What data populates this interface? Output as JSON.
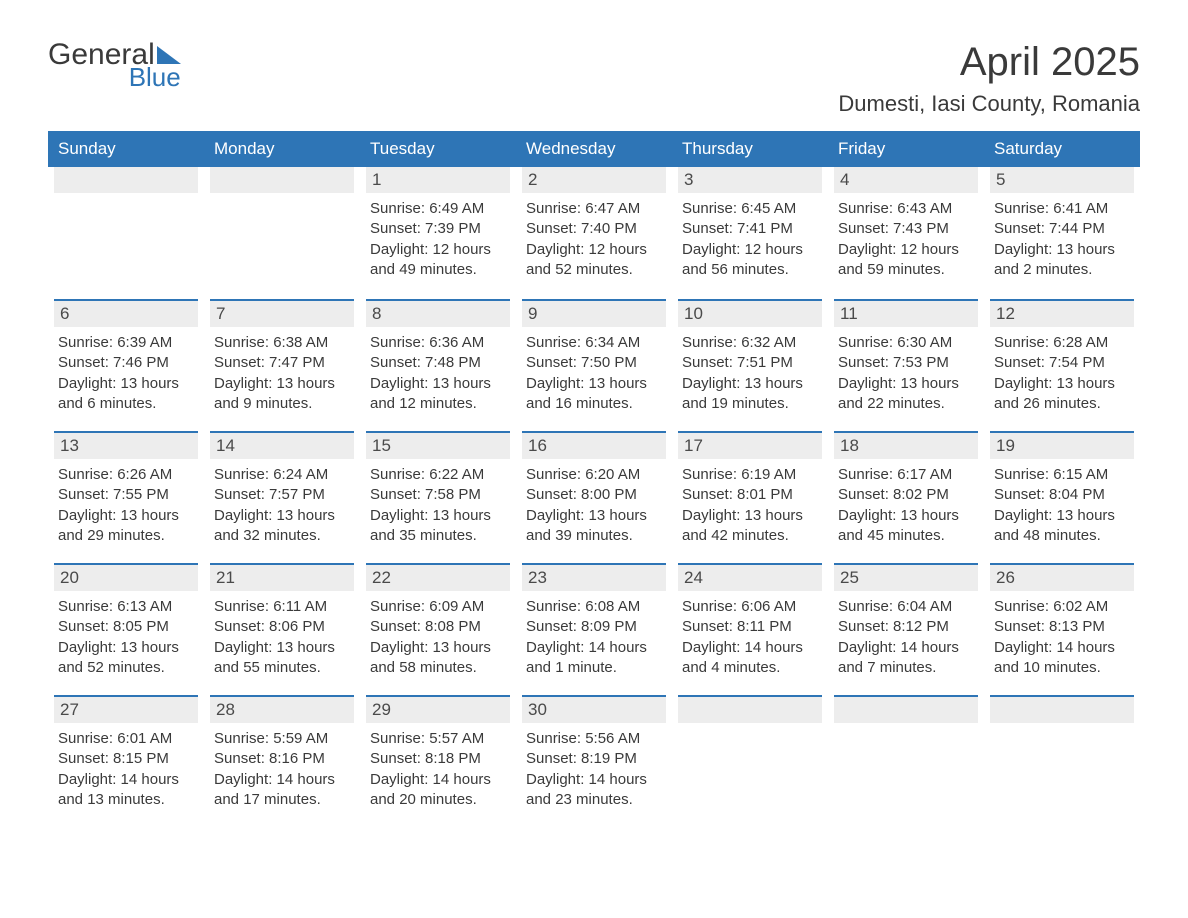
{
  "colors": {
    "accent": "#2e75b6",
    "header_bg": "#2e75b6",
    "header_text": "#ffffff",
    "daynum_bg": "#ededed",
    "text": "#3a3a3a",
    "background": "#ffffff"
  },
  "typography": {
    "title_fontsize": 40,
    "location_fontsize": 22,
    "weekday_fontsize": 17,
    "daynum_fontsize": 17,
    "body_fontsize": 15,
    "font_family": "Arial"
  },
  "logo": {
    "word1": "General",
    "word2": "Blue"
  },
  "title": "April 2025",
  "location": "Dumesti, Iasi County, Romania",
  "weekdays": [
    "Sunday",
    "Monday",
    "Tuesday",
    "Wednesday",
    "Thursday",
    "Friday",
    "Saturday"
  ],
  "weeks": [
    [
      {
        "num": "",
        "sunrise": "",
        "sunset": "",
        "daylight1": "",
        "daylight2": ""
      },
      {
        "num": "",
        "sunrise": "",
        "sunset": "",
        "daylight1": "",
        "daylight2": ""
      },
      {
        "num": "1",
        "sunrise": "Sunrise: 6:49 AM",
        "sunset": "Sunset: 7:39 PM",
        "daylight1": "Daylight: 12 hours",
        "daylight2": "and 49 minutes."
      },
      {
        "num": "2",
        "sunrise": "Sunrise: 6:47 AM",
        "sunset": "Sunset: 7:40 PM",
        "daylight1": "Daylight: 12 hours",
        "daylight2": "and 52 minutes."
      },
      {
        "num": "3",
        "sunrise": "Sunrise: 6:45 AM",
        "sunset": "Sunset: 7:41 PM",
        "daylight1": "Daylight: 12 hours",
        "daylight2": "and 56 minutes."
      },
      {
        "num": "4",
        "sunrise": "Sunrise: 6:43 AM",
        "sunset": "Sunset: 7:43 PM",
        "daylight1": "Daylight: 12 hours",
        "daylight2": "and 59 minutes."
      },
      {
        "num": "5",
        "sunrise": "Sunrise: 6:41 AM",
        "sunset": "Sunset: 7:44 PM",
        "daylight1": "Daylight: 13 hours",
        "daylight2": "and 2 minutes."
      }
    ],
    [
      {
        "num": "6",
        "sunrise": "Sunrise: 6:39 AM",
        "sunset": "Sunset: 7:46 PM",
        "daylight1": "Daylight: 13 hours",
        "daylight2": "and 6 minutes."
      },
      {
        "num": "7",
        "sunrise": "Sunrise: 6:38 AM",
        "sunset": "Sunset: 7:47 PM",
        "daylight1": "Daylight: 13 hours",
        "daylight2": "and 9 minutes."
      },
      {
        "num": "8",
        "sunrise": "Sunrise: 6:36 AM",
        "sunset": "Sunset: 7:48 PM",
        "daylight1": "Daylight: 13 hours",
        "daylight2": "and 12 minutes."
      },
      {
        "num": "9",
        "sunrise": "Sunrise: 6:34 AM",
        "sunset": "Sunset: 7:50 PM",
        "daylight1": "Daylight: 13 hours",
        "daylight2": "and 16 minutes."
      },
      {
        "num": "10",
        "sunrise": "Sunrise: 6:32 AM",
        "sunset": "Sunset: 7:51 PM",
        "daylight1": "Daylight: 13 hours",
        "daylight2": "and 19 minutes."
      },
      {
        "num": "11",
        "sunrise": "Sunrise: 6:30 AM",
        "sunset": "Sunset: 7:53 PM",
        "daylight1": "Daylight: 13 hours",
        "daylight2": "and 22 minutes."
      },
      {
        "num": "12",
        "sunrise": "Sunrise: 6:28 AM",
        "sunset": "Sunset: 7:54 PM",
        "daylight1": "Daylight: 13 hours",
        "daylight2": "and 26 minutes."
      }
    ],
    [
      {
        "num": "13",
        "sunrise": "Sunrise: 6:26 AM",
        "sunset": "Sunset: 7:55 PM",
        "daylight1": "Daylight: 13 hours",
        "daylight2": "and 29 minutes."
      },
      {
        "num": "14",
        "sunrise": "Sunrise: 6:24 AM",
        "sunset": "Sunset: 7:57 PM",
        "daylight1": "Daylight: 13 hours",
        "daylight2": "and 32 minutes."
      },
      {
        "num": "15",
        "sunrise": "Sunrise: 6:22 AM",
        "sunset": "Sunset: 7:58 PM",
        "daylight1": "Daylight: 13 hours",
        "daylight2": "and 35 minutes."
      },
      {
        "num": "16",
        "sunrise": "Sunrise: 6:20 AM",
        "sunset": "Sunset: 8:00 PM",
        "daylight1": "Daylight: 13 hours",
        "daylight2": "and 39 minutes."
      },
      {
        "num": "17",
        "sunrise": "Sunrise: 6:19 AM",
        "sunset": "Sunset: 8:01 PM",
        "daylight1": "Daylight: 13 hours",
        "daylight2": "and 42 minutes."
      },
      {
        "num": "18",
        "sunrise": "Sunrise: 6:17 AM",
        "sunset": "Sunset: 8:02 PM",
        "daylight1": "Daylight: 13 hours",
        "daylight2": "and 45 minutes."
      },
      {
        "num": "19",
        "sunrise": "Sunrise: 6:15 AM",
        "sunset": "Sunset: 8:04 PM",
        "daylight1": "Daylight: 13 hours",
        "daylight2": "and 48 minutes."
      }
    ],
    [
      {
        "num": "20",
        "sunrise": "Sunrise: 6:13 AM",
        "sunset": "Sunset: 8:05 PM",
        "daylight1": "Daylight: 13 hours",
        "daylight2": "and 52 minutes."
      },
      {
        "num": "21",
        "sunrise": "Sunrise: 6:11 AM",
        "sunset": "Sunset: 8:06 PM",
        "daylight1": "Daylight: 13 hours",
        "daylight2": "and 55 minutes."
      },
      {
        "num": "22",
        "sunrise": "Sunrise: 6:09 AM",
        "sunset": "Sunset: 8:08 PM",
        "daylight1": "Daylight: 13 hours",
        "daylight2": "and 58 minutes."
      },
      {
        "num": "23",
        "sunrise": "Sunrise: 6:08 AM",
        "sunset": "Sunset: 8:09 PM",
        "daylight1": "Daylight: 14 hours",
        "daylight2": "and 1 minute."
      },
      {
        "num": "24",
        "sunrise": "Sunrise: 6:06 AM",
        "sunset": "Sunset: 8:11 PM",
        "daylight1": "Daylight: 14 hours",
        "daylight2": "and 4 minutes."
      },
      {
        "num": "25",
        "sunrise": "Sunrise: 6:04 AM",
        "sunset": "Sunset: 8:12 PM",
        "daylight1": "Daylight: 14 hours",
        "daylight2": "and 7 minutes."
      },
      {
        "num": "26",
        "sunrise": "Sunrise: 6:02 AM",
        "sunset": "Sunset: 8:13 PM",
        "daylight1": "Daylight: 14 hours",
        "daylight2": "and 10 minutes."
      }
    ],
    [
      {
        "num": "27",
        "sunrise": "Sunrise: 6:01 AM",
        "sunset": "Sunset: 8:15 PM",
        "daylight1": "Daylight: 14 hours",
        "daylight2": "and 13 minutes."
      },
      {
        "num": "28",
        "sunrise": "Sunrise: 5:59 AM",
        "sunset": "Sunset: 8:16 PM",
        "daylight1": "Daylight: 14 hours",
        "daylight2": "and 17 minutes."
      },
      {
        "num": "29",
        "sunrise": "Sunrise: 5:57 AM",
        "sunset": "Sunset: 8:18 PM",
        "daylight1": "Daylight: 14 hours",
        "daylight2": "and 20 minutes."
      },
      {
        "num": "30",
        "sunrise": "Sunrise: 5:56 AM",
        "sunset": "Sunset: 8:19 PM",
        "daylight1": "Daylight: 14 hours",
        "daylight2": "and 23 minutes."
      },
      {
        "num": "",
        "sunrise": "",
        "sunset": "",
        "daylight1": "",
        "daylight2": ""
      },
      {
        "num": "",
        "sunrise": "",
        "sunset": "",
        "daylight1": "",
        "daylight2": ""
      },
      {
        "num": "",
        "sunrise": "",
        "sunset": "",
        "daylight1": "",
        "daylight2": ""
      }
    ]
  ]
}
